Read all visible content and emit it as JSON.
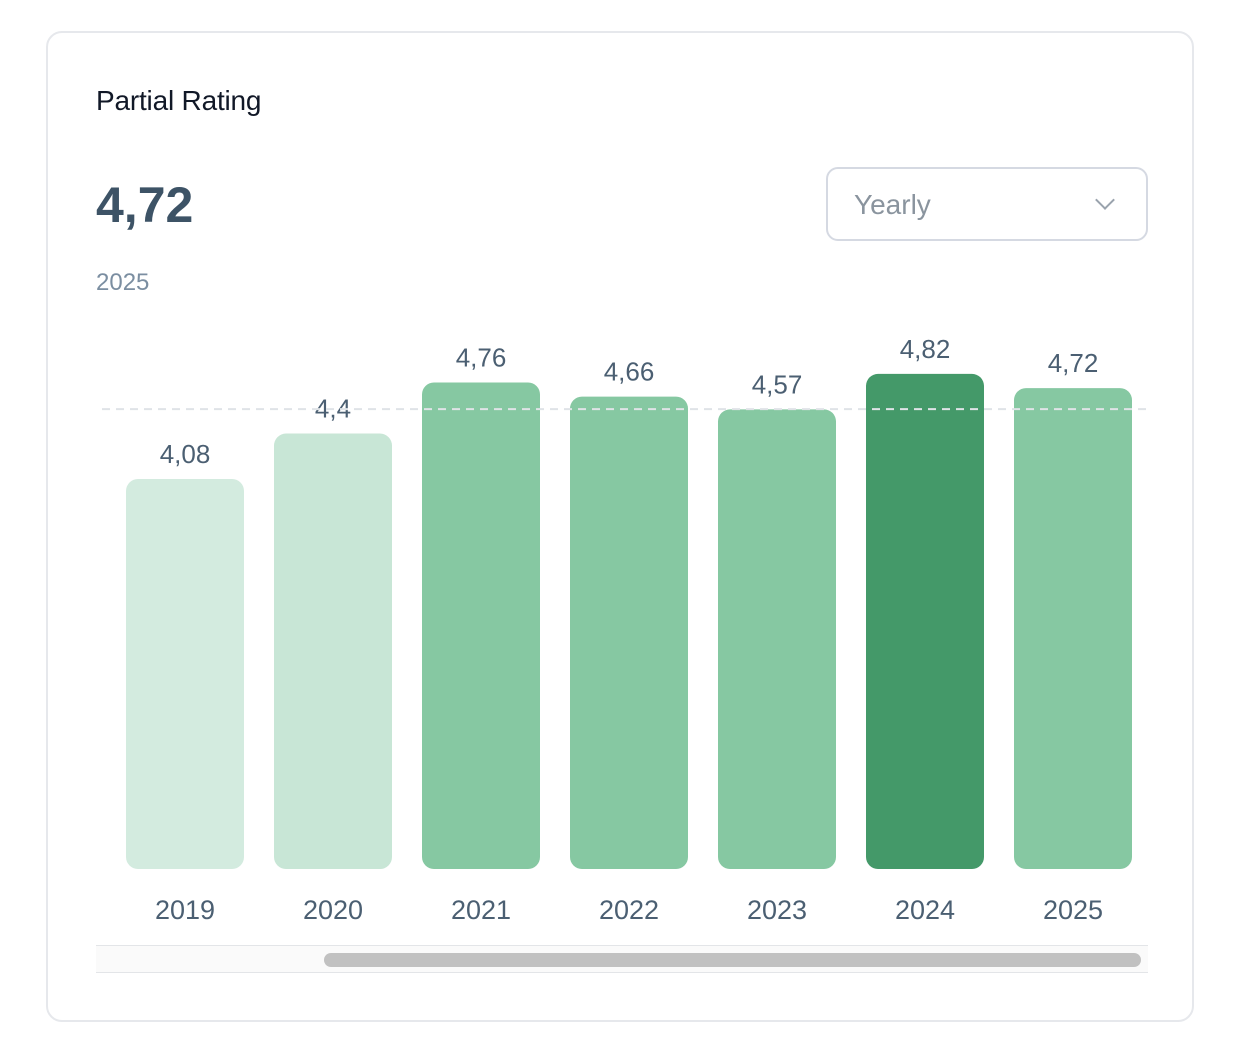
{
  "card": {
    "title": "Partial Rating",
    "current_value": "4,72",
    "current_period": "2025"
  },
  "period_select": {
    "selected": "Yearly",
    "icon": "chevron-down-icon"
  },
  "chart_data": {
    "type": "bar",
    "categories": [
      "2019",
      "2020",
      "2021",
      "2022",
      "2023",
      "2024",
      "2025"
    ],
    "values": [
      4.08,
      4.4,
      4.76,
      4.66,
      4.57,
      4.82,
      4.72
    ],
    "data_labels": [
      "4,08",
      "4,4",
      "4,76",
      "4,66",
      "4,57",
      "4,82",
      "4,72"
    ],
    "reference_line": 4.72,
    "highlighted_category": "2024",
    "ylim": [
      0,
      5
    ],
    "grid": false,
    "colors": {
      "lowest": "#d3ebdf",
      "low": "#c8e6d6",
      "normal": "#86c8a2",
      "highlight": "#449969",
      "label": "#4b5f72",
      "reference_line": "#dfe3e7"
    }
  },
  "scrollbar": {
    "position": 0.22,
    "visible_fraction": 0.78
  }
}
